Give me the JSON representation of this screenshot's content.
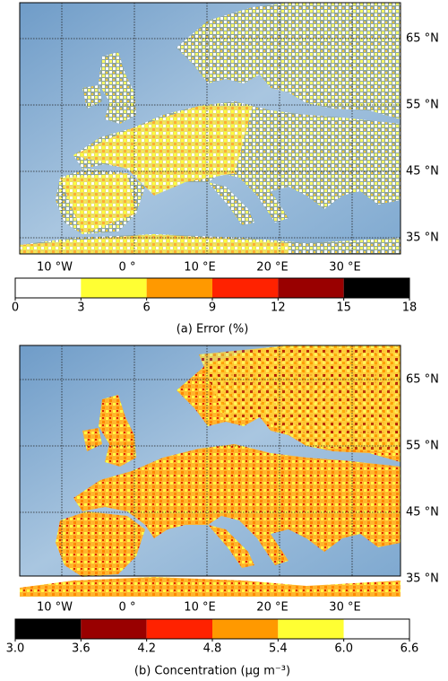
{
  "panels": [
    {
      "lat_ticks": [
        {
          "value": 65,
          "label": "65 °N"
        },
        {
          "value": 55,
          "label": "55 °N"
        },
        {
          "value": 45,
          "label": "45 °N"
        },
        {
          "value": 35,
          "label": "35 °N"
        }
      ],
      "lon_ticks": [
        {
          "value": -10,
          "label": "10 °W"
        },
        {
          "value": 0,
          "label": "0 °"
        },
        {
          "value": 10,
          "label": "10 °E"
        },
        {
          "value": 20,
          "label": "20 °E"
        },
        {
          "value": 30,
          "label": "30 °E"
        }
      ],
      "colorbar": {
        "ticks": [
          0,
          3,
          6,
          9,
          12,
          15,
          18
        ],
        "colors": [
          "#ffffff",
          "#ffff33",
          "#ff9900",
          "#ff2200",
          "#990000",
          "#000000"
        ]
      },
      "caption": "(a) Error (%)"
    },
    {
      "lat_ticks": [
        {
          "value": 65,
          "label": "65 °N"
        },
        {
          "value": 55,
          "label": "55 °N"
        },
        {
          "value": 45,
          "label": "45 °N"
        },
        {
          "value": 35,
          "label": "35 °N"
        }
      ],
      "lon_ticks": [
        {
          "value": -10,
          "label": "10 °W"
        },
        {
          "value": 0,
          "label": "0 °"
        },
        {
          "value": 10,
          "label": "10 °E"
        },
        {
          "value": 20,
          "label": "20 °E"
        },
        {
          "value": 30,
          "label": "30 °E"
        }
      ],
      "colorbar": {
        "ticks": [
          {
            "value": 3,
            "label": "3.0"
          },
          3.6,
          4.2,
          4.8,
          5.4,
          {
            "value": 6,
            "label": "6.0"
          },
          6.6
        ],
        "colors": [
          "#000000",
          "#990000",
          "#ff2200",
          "#ff9900",
          "#ffff33",
          "#ffffff"
        ]
      },
      "caption": "(b) Concentration (μg m⁻³)"
    }
  ]
}
